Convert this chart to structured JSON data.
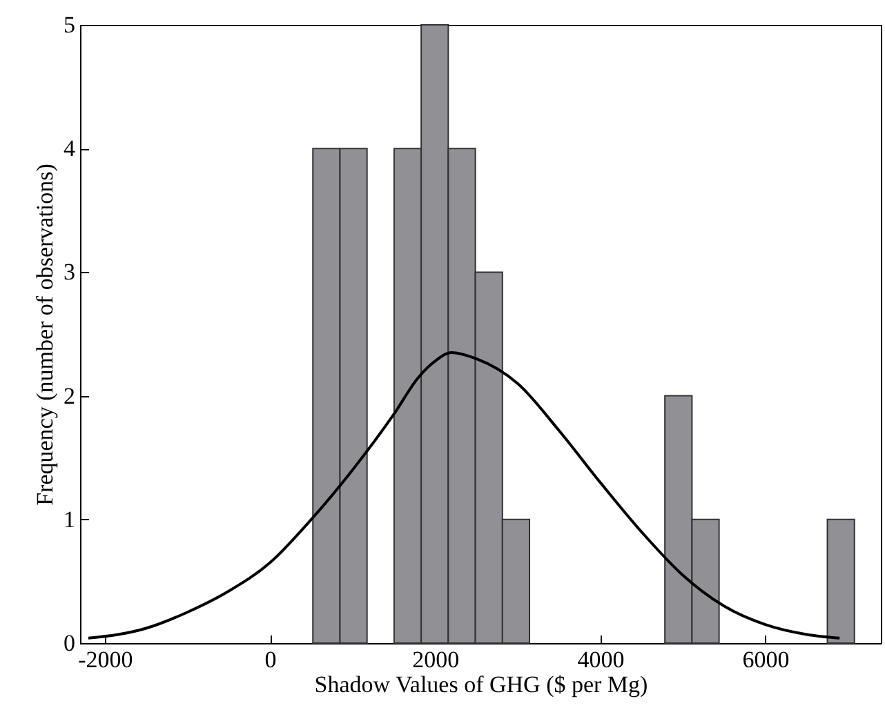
{
  "chart_data": {
    "type": "histogram",
    "xlabel": "Shadow Values of GHG ($ per Mg)",
    "ylabel": "Frequency (number of observations)",
    "xlim": [
      -2300,
      7400
    ],
    "xticks": [
      -2000,
      0,
      2000,
      4000,
      6000
    ],
    "ylim": [
      0,
      5
    ],
    "yticks": [
      0,
      1,
      2,
      3,
      4,
      5
    ],
    "grid": false,
    "series": [
      {
        "color": "#909095",
        "bins": [
          520,
          848,
          1176,
          1504,
          1832,
          2160,
          2488,
          2816,
          3144,
          3472,
          3800,
          4128,
          4456,
          4784,
          5112,
          5440,
          5768,
          6096,
          6424,
          6752,
          7080
        ],
        "values": [
          4,
          4,
          0,
          4,
          5,
          4,
          3,
          1,
          0,
          0,
          0,
          0,
          0,
          2,
          1,
          0,
          0,
          0,
          0,
          1
        ]
      },
      {
        "type": "line",
        "color": "#000000",
        "x": [
          -2200,
          -1500,
          -1000,
          -500,
          0,
          500,
          1000,
          1500,
          1800,
          2000,
          2200,
          2500,
          3000,
          3500,
          4000,
          4500,
          5000,
          5500,
          6000,
          6500,
          6900
        ],
        "values": [
          0.04,
          0.12,
          0.25,
          0.42,
          0.65,
          1.0,
          1.4,
          1.85,
          2.15,
          2.28,
          2.35,
          2.3,
          2.1,
          1.72,
          1.3,
          0.9,
          0.55,
          0.3,
          0.15,
          0.07,
          0.04
        ]
      }
    ]
  }
}
